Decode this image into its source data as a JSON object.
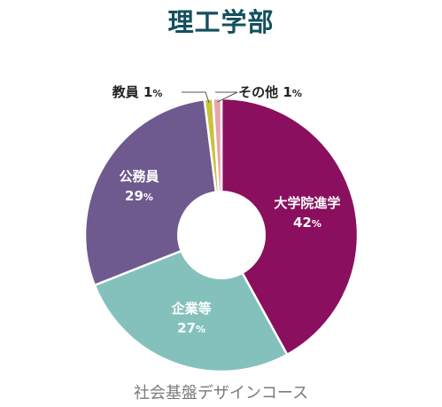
{
  "title": "理工学部",
  "caption": "社会基盤デザインコース",
  "chart_data": {
    "type": "pie",
    "title": "理工学部",
    "donut": true,
    "slices": [
      {
        "label": "大学院進学",
        "value": 42,
        "unit": "%",
        "color": "#8a0f5e"
      },
      {
        "label": "企業等",
        "value": 27,
        "unit": "%",
        "color": "#84c1bc"
      },
      {
        "label": "公務員",
        "value": 29,
        "unit": "%",
        "color": "#6e5a8f"
      },
      {
        "label": "教員",
        "value": 1,
        "unit": "%",
        "color": "#c9c23b"
      },
      {
        "label": "その他",
        "value": 1,
        "unit": "%",
        "color": "#e8a3ad"
      }
    ]
  }
}
